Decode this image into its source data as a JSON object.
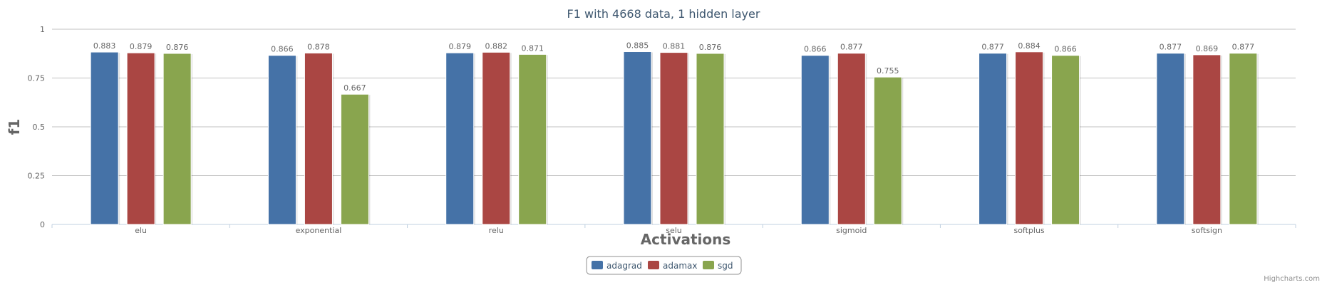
{
  "chart_data": {
    "type": "bar",
    "title": "F1 with 4668 data, 1 hidden layer",
    "xlabel": "Activations",
    "ylabel": "f1",
    "ylim": [
      0,
      1
    ],
    "yticks": [
      "0",
      "0.25",
      "0.5",
      "0.75",
      "1"
    ],
    "grid": true,
    "legend_position": "bottom-center",
    "categories": [
      "elu",
      "exponential",
      "relu",
      "selu",
      "sigmoid",
      "softplus",
      "softsign"
    ],
    "series": [
      {
        "name": "adagrad",
        "color": "#4572a7",
        "values": [
          0.883,
          0.866,
          0.879,
          0.885,
          0.866,
          0.877,
          0.877
        ]
      },
      {
        "name": "adamax",
        "color": "#aa4643",
        "values": [
          0.879,
          0.878,
          0.882,
          0.881,
          0.877,
          0.884,
          0.869
        ]
      },
      {
        "name": "sgd",
        "color": "#89a54e",
        "values": [
          0.876,
          0.667,
          0.871,
          0.876,
          0.755,
          0.866,
          0.877
        ]
      }
    ],
    "credits": "Highcharts.com"
  }
}
